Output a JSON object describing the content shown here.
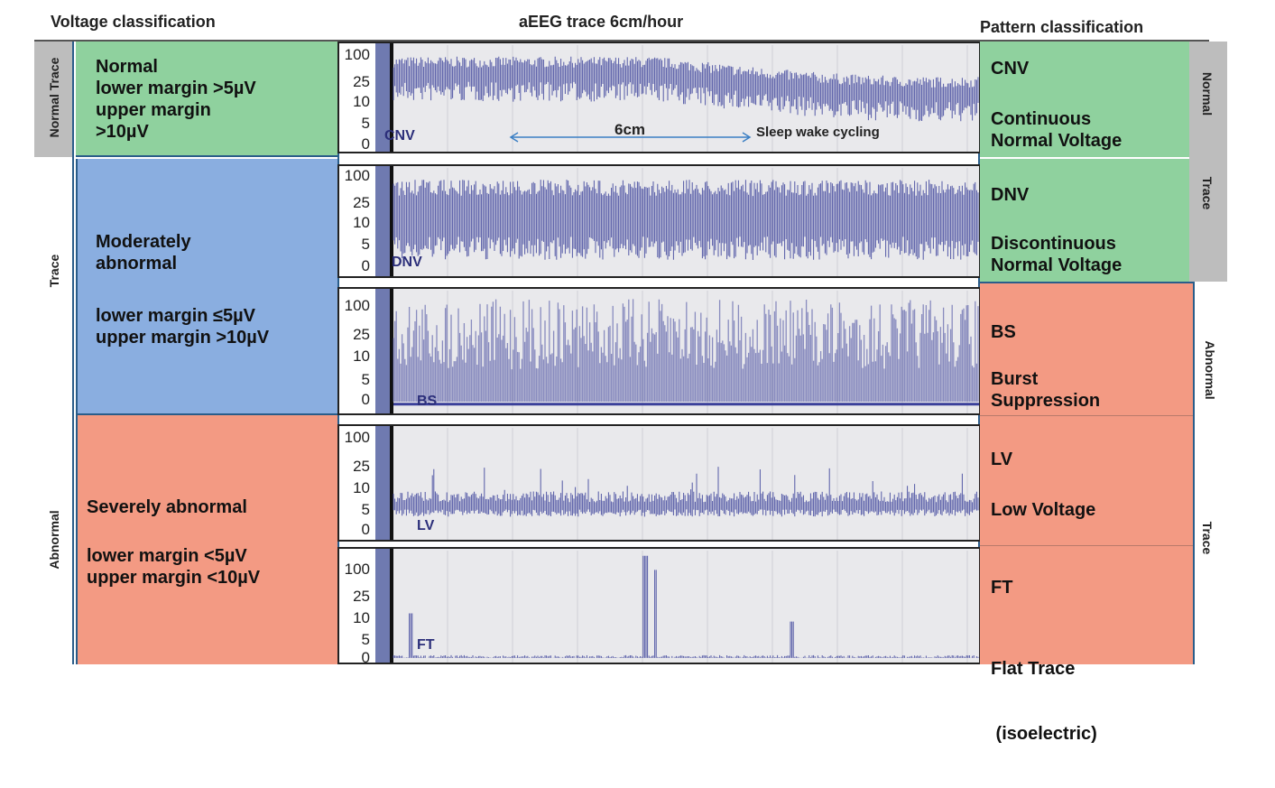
{
  "headers": {
    "voltage": "Voltage classification",
    "trace": "aEEG trace 6cm/hour",
    "pattern": "Pattern classification"
  },
  "left_labels": {
    "normal_trace": "Normal Trace",
    "trace": "Trace",
    "abnormal": "Abnormal"
  },
  "voltage": {
    "normal": [
      "Normal",
      "lower margin >5µV",
      "upper margin",
      ">10µV"
    ],
    "moderate_title": [
      "Moderately",
      "abnormal"
    ],
    "moderate_margins": [
      "lower margin ≤5µV",
      "upper margin >10µV"
    ],
    "severe_title": "Severely abnormal",
    "severe_margins": [
      "lower margin <5µV",
      "upper margin <10µV"
    ]
  },
  "traces": [
    {
      "code": "CNV"
    },
    {
      "code": "DNV"
    },
    {
      "code": "BS"
    },
    {
      "code": "LV"
    },
    {
      "code": "FT"
    }
  ],
  "y_ticks": [
    "100",
    "25",
    "10",
    "5",
    "0"
  ],
  "annotations": {
    "scale": "6cm",
    "sleep": "Sleep wake cycling"
  },
  "patterns": [
    {
      "code": "CNV",
      "name": [
        "Continuous",
        "Normal Voltage"
      ]
    },
    {
      "code": "DNV",
      "name": [
        "Discontinuous",
        "Normal Voltage"
      ]
    },
    {
      "code": "BS",
      "name": [
        "Burst",
        "Suppression"
      ]
    },
    {
      "code": "LV",
      "name": [
        "Low Voltage"
      ]
    },
    {
      "code": "FT",
      "name": [
        "Flat Trace",
        " (isoelectric)"
      ]
    }
  ],
  "right_labels": {
    "normal": "Normal",
    "trace1": "Trace",
    "abnormal": "Abnormal",
    "trace2": "Trace"
  },
  "colors": {
    "normal": "#8fd19e",
    "moderate": "#8aaee0",
    "severe": "#f39a83",
    "trace": "#3a3f9a"
  }
}
